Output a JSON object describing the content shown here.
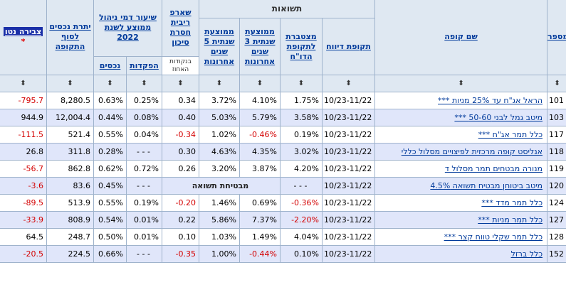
{
  "header": {
    "group_returns": "תשואות",
    "col_id": "מספר",
    "col_name": "שם קופה",
    "col_period": "תקופת דיווח",
    "col_cum": "מצטברת לתקופת הדו\"ח",
    "col_avg3": "ממוצעת שנתית 3 שנים אחרונות",
    "col_avg5": "ממוצעת שנתית 5 שנים אחרונות",
    "col_sharpe": "שארפ ריבית חסרת סיכון",
    "col_sharpe_note": "בנקודות האחוז",
    "col_fees": "שיעור דמי ניהול ממוצע לשנת 2022",
    "col_fees_assets": "נכסים",
    "col_fees_deposits": "הפקדות",
    "col_assets": "יתרת נכסים לסוף התקופה",
    "col_netflow": "צבירה נטו",
    "col_netflow_star": "*",
    "sort_glyph": "⬍"
  },
  "rows": [
    {
      "id": "101",
      "name": "הראל אג\"ח עד 25% מניות ***",
      "period": "10/23-11/22",
      "cum": "1.75%",
      "avg3": "4.10%",
      "avg5": "3.72%",
      "sharpe": "0.34",
      "fee_dep": "0.25%",
      "fee_assets": "0.63%",
      "assets": "8,280.5",
      "net": "-795.7",
      "cum_neg": false,
      "avg3_neg": false,
      "sharpe_neg": false,
      "net_neg": true
    },
    {
      "id": "103",
      "name": "מיטב גמל לבני 50-60 ***",
      "period": "10/23-11/22",
      "cum": "3.58%",
      "avg3": "5.79%",
      "avg5": "5.03%",
      "sharpe": "0.40",
      "fee_dep": "0.08%",
      "fee_assets": "0.44%",
      "assets": "12,004.4",
      "net": "944.9",
      "cum_neg": false,
      "avg3_neg": false,
      "sharpe_neg": false,
      "net_neg": false
    },
    {
      "id": "117",
      "name": "כלל תמר אג\"ח ***",
      "period": "10/23-11/22",
      "cum": "0.19%",
      "avg3": "-0.46%",
      "avg5": "1.02%",
      "sharpe": "-0.34",
      "fee_dep": "0.04%",
      "fee_assets": "0.55%",
      "assets": "521.4",
      "net": "-111.5",
      "cum_neg": false,
      "avg3_neg": true,
      "sharpe_neg": true,
      "net_neg": true
    },
    {
      "id": "118",
      "name": "אנליסט קופה מרכזית לפיצויים מסלול כללי",
      "period": "10/23-11/22",
      "cum": "3.02%",
      "avg3": "4.35%",
      "avg5": "4.63%",
      "sharpe": "0.30",
      "fee_dep": "- - -",
      "fee_assets": "0.28%",
      "assets": "311.8",
      "net": "26.8",
      "cum_neg": false,
      "avg3_neg": false,
      "sharpe_neg": false,
      "net_neg": false
    },
    {
      "id": "119",
      "name": "מנורה מבטחים תמר מסלול ד",
      "period": "10/23-11/22",
      "cum": "4.20%",
      "avg3": "3.87%",
      "avg5": "3.20%",
      "sharpe": "0.26",
      "fee_dep": "0.72%",
      "fee_assets": "0.62%",
      "assets": "862.8",
      "net": "-56.7",
      "cum_neg": false,
      "avg3_neg": false,
      "sharpe_neg": false,
      "net_neg": true
    },
    {
      "id": "120",
      "name": "מיטב ביטוחן מבטיח תשואה 4.5%",
      "period": "10/23-11/22",
      "cum": "- - -",
      "guaranteed": "מבטיחת תשואה",
      "fee_dep": "- - -",
      "fee_assets": "0.45%",
      "assets": "83.6",
      "net": "-3.6",
      "net_neg": true
    },
    {
      "id": "124",
      "name": "כלל תמר מדד ***",
      "period": "10/23-11/22",
      "cum": "-0.36%",
      "avg3": "0.69%",
      "avg5": "1.46%",
      "sharpe": "-0.20",
      "fee_dep": "0.19%",
      "fee_assets": "0.55%",
      "assets": "513.9",
      "net": "-89.5",
      "cum_neg": true,
      "avg3_neg": false,
      "sharpe_neg": true,
      "net_neg": true
    },
    {
      "id": "127",
      "name": "כלל תמר מניות ***",
      "period": "10/23-11/22",
      "cum": "-2.20%",
      "avg3": "7.37%",
      "avg5": "5.86%",
      "sharpe": "0.22",
      "fee_dep": "0.01%",
      "fee_assets": "0.54%",
      "assets": "808.9",
      "net": "-33.9",
      "cum_neg": true,
      "avg3_neg": false,
      "sharpe_neg": false,
      "net_neg": true
    },
    {
      "id": "128",
      "name": "כלל תמר שקלי טווח קצר ***",
      "period": "10/23-11/22",
      "cum": "4.04%",
      "avg3": "1.49%",
      "avg5": "1.03%",
      "sharpe": "0.10",
      "fee_dep": "0.01%",
      "fee_assets": "0.50%",
      "assets": "248.7",
      "net": "64.5",
      "cum_neg": false,
      "avg3_neg": false,
      "sharpe_neg": false,
      "net_neg": false
    },
    {
      "id": "152",
      "name": "כלל ברזל",
      "period": "10/23-11/22",
      "cum": "0.10%",
      "avg3": "-0.44%",
      "avg5": "1.00%",
      "sharpe": "-0.35",
      "fee_dep": "- - -",
      "fee_assets": "0.66%",
      "assets": "224.5",
      "net": "-20.5",
      "cum_neg": false,
      "avg3_neg": true,
      "sharpe_neg": true,
      "net_neg": true
    }
  ]
}
